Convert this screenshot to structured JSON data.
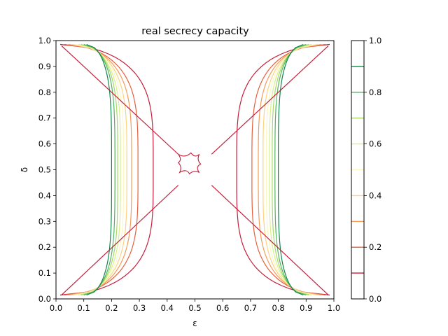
{
  "chart_data": {
    "type": "contour",
    "title": "real secrecy capacity",
    "xlabel": "ε",
    "ylabel": "δ",
    "xlim": [
      0.0,
      1.0
    ],
    "ylim": [
      0.0,
      1.0
    ],
    "xticks": [
      "0.0",
      "0.1",
      "0.2",
      "0.3",
      "0.4",
      "0.5",
      "0.6",
      "0.7",
      "0.8",
      "0.9",
      "1.0"
    ],
    "yticks": [
      "0.0",
      "0.1",
      "0.2",
      "0.3",
      "0.4",
      "0.5",
      "0.6",
      "0.7",
      "0.8",
      "0.9",
      "1.0"
    ],
    "colormap": "RdYlGn",
    "colorbar": {
      "range": [
        0.0,
        1.0
      ],
      "ticks": [
        "0.0",
        "0.2",
        "0.4",
        "0.6",
        "0.8",
        "1.0"
      ],
      "levels": [
        0.1,
        0.2,
        0.3,
        0.4,
        0.5,
        0.6,
        0.7,
        0.8,
        0.9
      ]
    },
    "levels": [
      {
        "value": 0.1,
        "color": "#c41e3a",
        "x_mid": 0.35,
        "x_corner": 0.015
      },
      {
        "value": 0.2,
        "color": "#e4603d",
        "x_mid": 0.295,
        "x_corner": 0.03
      },
      {
        "value": 0.3,
        "color": "#f59b58",
        "x_mid": 0.272,
        "x_corner": 0.045
      },
      {
        "value": 0.4,
        "color": "#fdd381",
        "x_mid": 0.255,
        "x_corner": 0.058
      },
      {
        "value": 0.5,
        "color": "#fbf7c4",
        "x_mid": 0.243,
        "x_corner": 0.07
      },
      {
        "value": 0.6,
        "color": "#d9ef8b",
        "x_mid": 0.232,
        "x_corner": 0.08
      },
      {
        "value": 0.7,
        "color": "#a6d96a",
        "x_mid": 0.222,
        "x_corner": 0.09
      },
      {
        "value": 0.8,
        "color": "#52b35e",
        "x_mid": 0.212,
        "x_corner": 0.1
      },
      {
        "value": 0.9,
        "color": "#14844a",
        "x_mid": 0.2,
        "x_corner": 0.11
      }
    ]
  }
}
